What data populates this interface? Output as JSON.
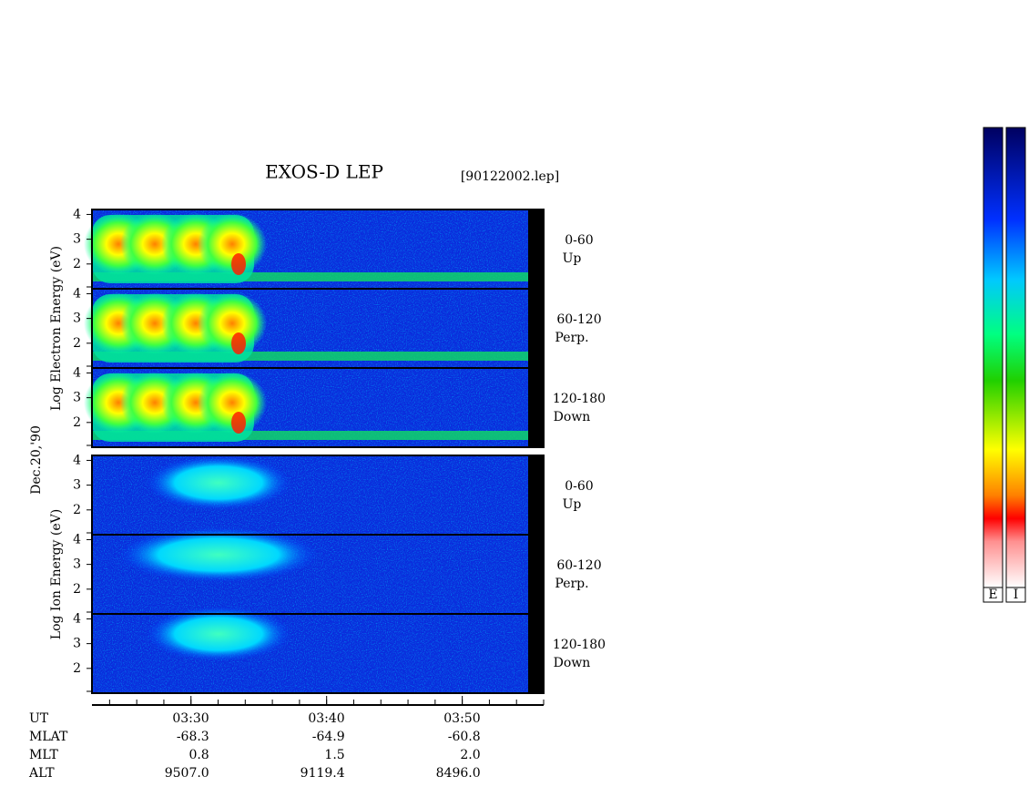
{
  "chart_data": {
    "type": "spectrogram",
    "title": "EXOS-D LEP",
    "file": "[90122002.lep]",
    "date": "Dec.20,'90",
    "groups": [
      {
        "ylabel": "Log Electron Energy (eV)",
        "species": "electron",
        "panels": [
          {
            "angle": "0-60",
            "dir": "Up"
          },
          {
            "angle": "60-120",
            "dir": "Perp."
          },
          {
            "angle": "120-180",
            "dir": "Down"
          }
        ]
      },
      {
        "ylabel": "Log Ion Energy (eV)",
        "species": "ion",
        "panels": [
          {
            "angle": "0-60",
            "dir": "Up"
          },
          {
            "angle": "60-120",
            "dir": "Perp."
          },
          {
            "angle": "120-180",
            "dir": "Down"
          }
        ]
      }
    ],
    "ylim": [
      1,
      4.2
    ],
    "yticks": [
      2,
      3,
      4
    ],
    "xlim": [
      202.7,
      236
    ],
    "xticks": [
      {
        "value": 210,
        "label": "03:30"
      },
      {
        "value": 220,
        "label": "03:40"
      },
      {
        "value": 230,
        "label": "03:50"
      }
    ],
    "ephemeris": [
      {
        "name": "UT"
      },
      {
        "name": "MLAT",
        "values": [
          "-68.3",
          "-64.9",
          "-60.8"
        ]
      },
      {
        "name": "MLT",
        "values": [
          "0.8",
          "1.5",
          "2.0"
        ]
      },
      {
        "name": "ALT",
        "values": [
          "9507.0",
          "9119.4",
          "8496.0"
        ]
      }
    ],
    "colorbars": [
      "E",
      "I"
    ]
  }
}
